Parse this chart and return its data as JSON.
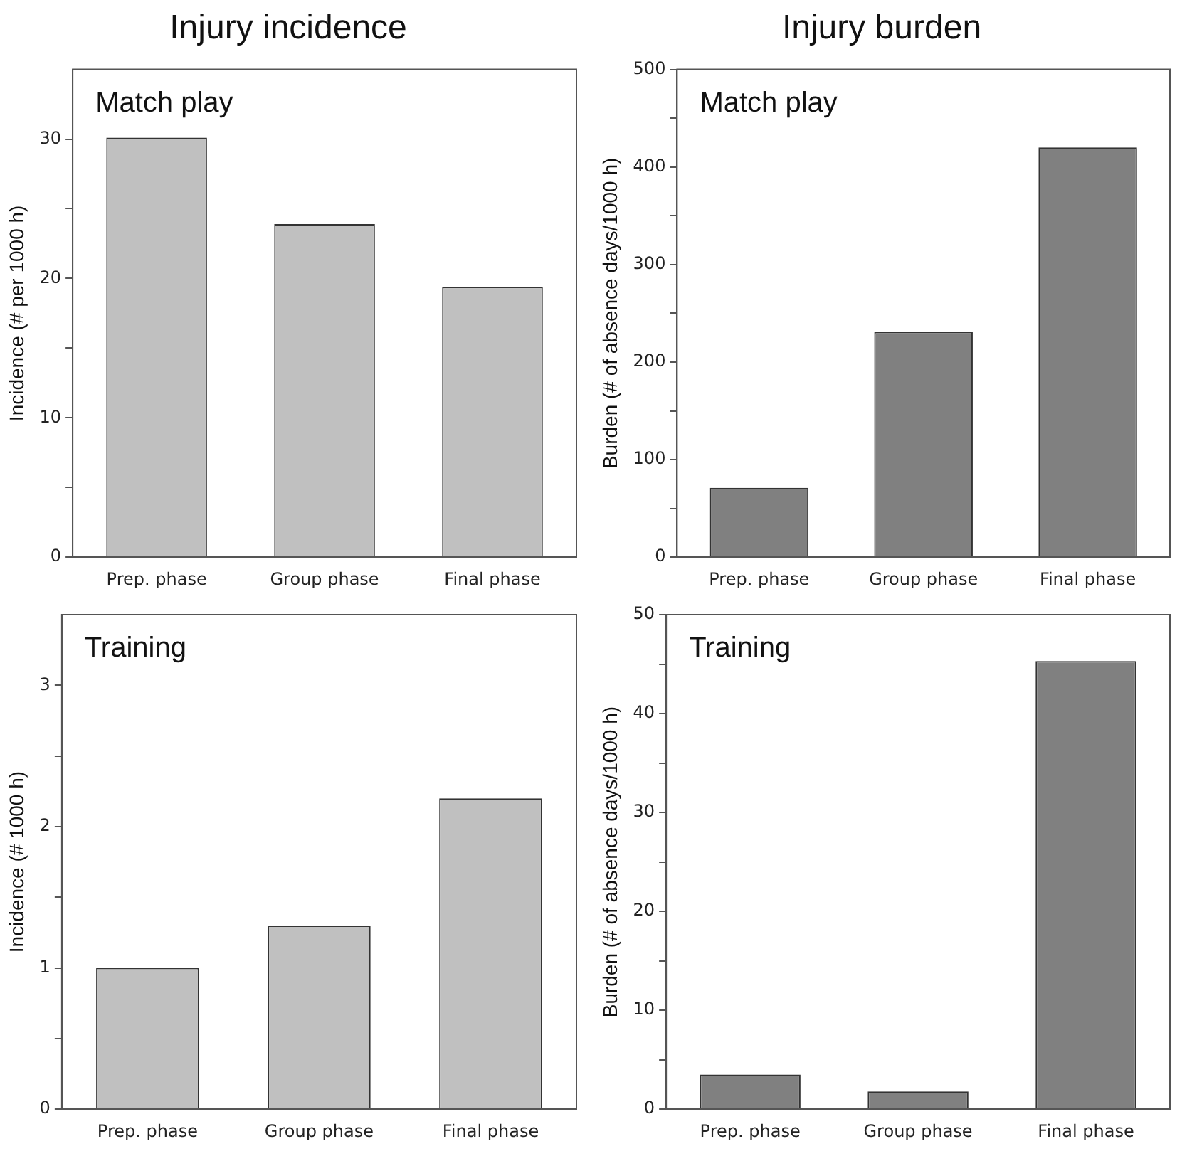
{
  "chart_data": [
    {
      "type": "bar",
      "title": "Injury incidence",
      "annotations": [
        "Match play"
      ],
      "ylabel": "Incidence (# per 1000 h)",
      "categories": [
        "Prep. phase",
        "Group phase",
        "Final phase"
      ],
      "values": [
        30.1,
        23.9,
        19.4
      ],
      "color": "#c0c0c0",
      "ylim": [
        0,
        35
      ],
      "yticks": [
        0,
        {
          "value": 5,
          "label": null
        },
        10,
        {
          "value": 15,
          "label": null
        },
        20,
        {
          "value": 25,
          "label": null
        },
        30
      ],
      "grid": false,
      "legend": false
    },
    {
      "type": "bar",
      "title": "Injury burden",
      "annotations": [
        "Match play"
      ],
      "ylabel": "Burden (# of absence days/1000 h)",
      "categories": [
        "Prep. phase",
        "Group phase",
        "Final phase"
      ],
      "values": [
        71,
        231,
        420
      ],
      "color": "#808080",
      "ylim": [
        0,
        500
      ],
      "yticks": [
        0,
        {
          "value": 50,
          "label": null
        },
        100,
        {
          "value": 150,
          "label": null
        },
        200,
        {
          "value": 250,
          "label": null
        },
        300,
        {
          "value": 350,
          "label": null
        },
        400,
        {
          "value": 450,
          "label": null
        },
        500
      ],
      "grid": false,
      "legend": false
    },
    {
      "type": "bar",
      "annotations": [
        "Training"
      ],
      "ylabel": "Incidence (# 1000 h)",
      "categories": [
        "Prep. phase",
        "Group phase",
        "Final phase"
      ],
      "values": [
        1.0,
        1.3,
        2.2
      ],
      "color": "#c0c0c0",
      "ylim": [
        0,
        3.5
      ],
      "yticks": [
        0,
        {
          "value": 0.5,
          "label": null
        },
        1,
        {
          "value": 1.5,
          "label": null
        },
        2,
        {
          "value": 2.5,
          "label": null
        },
        3
      ],
      "grid": false,
      "legend": false
    },
    {
      "type": "bar",
      "annotations": [
        "Training"
      ],
      "ylabel": "Burden (# of absence days/1000 h)",
      "categories": [
        "Prep. phase",
        "Group phase",
        "Final phase"
      ],
      "values": [
        3.5,
        1.8,
        45.3
      ],
      "color": "#808080",
      "ylim": [
        0,
        50
      ],
      "yticks": [
        0,
        {
          "value": 5,
          "label": null
        },
        10,
        {
          "value": 15,
          "label": null
        },
        20,
        {
          "value": 25,
          "label": null
        },
        30,
        {
          "value": 35,
          "label": null
        },
        40,
        {
          "value": 45,
          "label": null
        },
        50
      ],
      "grid": false,
      "legend": false
    }
  ]
}
